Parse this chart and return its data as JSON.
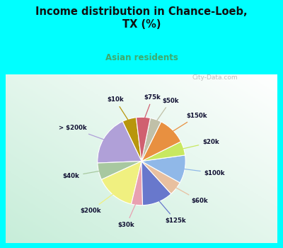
{
  "title": "Income distribution in Chance-Loeb,\nTX (%)",
  "subtitle": "Asian residents",
  "title_color": "#111111",
  "subtitle_color": "#3daa6e",
  "background_color": "#00ffff",
  "watermark": "City-Data.com",
  "labels": [
    "$10k",
    "> $200k",
    "$40k",
    "$200k",
    "$30k",
    "$125k",
    "$60k",
    "$100k",
    "$20k",
    "$150k",
    "$50k",
    "$75k"
  ],
  "values": [
    5,
    18,
    6,
    14,
    4,
    11,
    5,
    10,
    5,
    10,
    4,
    5
  ],
  "colors": [
    "#b8960c",
    "#b0a0d8",
    "#a8c8a0",
    "#f0f080",
    "#e8a0b0",
    "#6878cc",
    "#e8c0a0",
    "#90b8e8",
    "#c8e860",
    "#e89040",
    "#c0c0a8",
    "#d06070"
  ],
  "label_color": "#111133",
  "startangle": 97
}
